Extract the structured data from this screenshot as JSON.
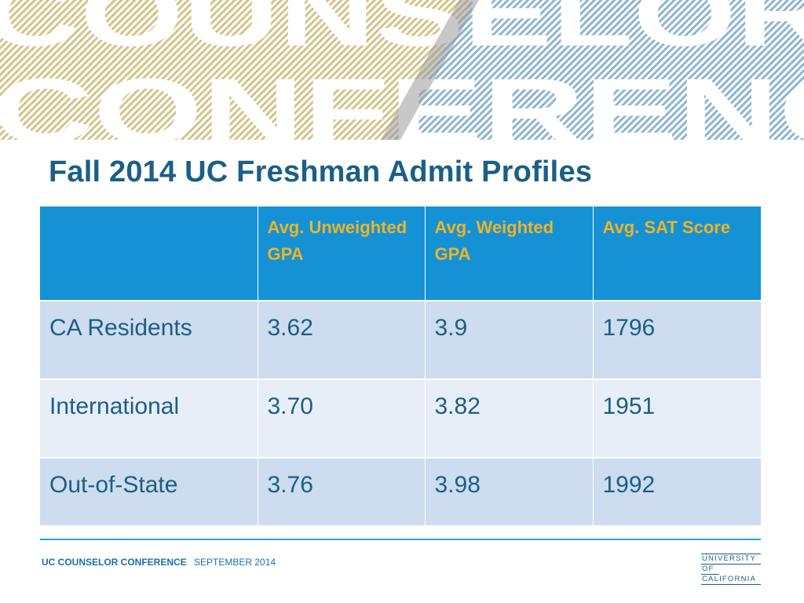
{
  "banner": {
    "word_top": "COUNSELOR",
    "word_bottom": "CONFERENCE",
    "color_gold": "#d4c48a",
    "color_blue": "#8fb5d1"
  },
  "title": "Fall 2014 UC Freshman Admit Profiles",
  "table": {
    "headers": [
      "",
      "Avg. Unweighted GPA",
      "Avg. Weighted GPA",
      "Avg. SAT Score"
    ],
    "rows": [
      [
        "CA Residents",
        "3.62",
        "3.9",
        "1796"
      ],
      [
        "International",
        "3.70",
        "3.82",
        "1951"
      ],
      [
        "Out-of-State",
        "3.76",
        "3.98",
        "1992"
      ]
    ]
  },
  "footer": {
    "conference": "UC COUNSELOR CONFERENCE",
    "date": "SEPTEMBER 2014"
  },
  "logo": {
    "lines": [
      "UNIVERSITY",
      "OF",
      "CALIFORNIA"
    ]
  },
  "colors": {
    "title": "#1b5f86",
    "header_bg": "#1592d6",
    "header_text": "#f0b323",
    "row_odd": "#cddcee",
    "row_even": "#e8eef8",
    "footer_rule": "#1fa7c8"
  }
}
